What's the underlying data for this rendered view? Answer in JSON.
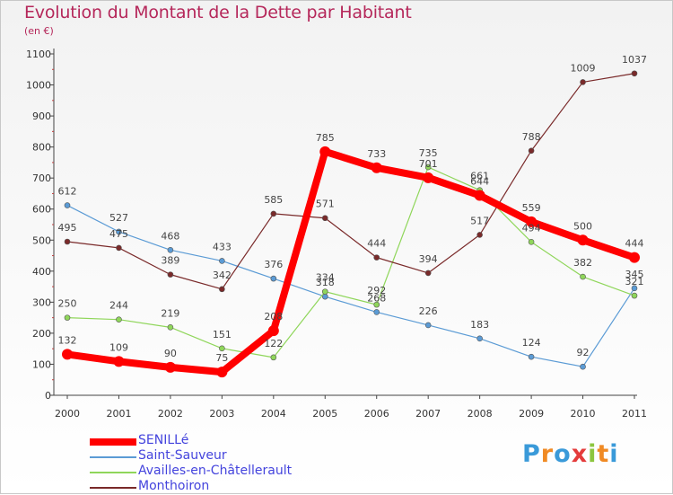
{
  "chart_data": {
    "type": "line",
    "title": "Evolution du Montant de la Dette par Habitant",
    "subtitle": "(en €)",
    "x": [
      "2000",
      "2001",
      "2002",
      "2003",
      "2004",
      "2005",
      "2006",
      "2007",
      "2008",
      "2009",
      "2010",
      "2011"
    ],
    "yticks": [
      0,
      100,
      200,
      300,
      400,
      500,
      600,
      700,
      800,
      900,
      1000,
      1100
    ],
    "ylim": [
      0,
      1100
    ],
    "grid": false,
    "legend_position": "bottom-left",
    "series": [
      {
        "name": "Saint-Sauveur",
        "color": "#5b9bd5",
        "values": [
          612,
          527,
          468,
          433,
          376,
          318,
          268,
          226,
          183,
          124,
          92,
          345
        ]
      },
      {
        "name": "Availles-en-Châtellerault",
        "color": "#8fd65a",
        "values": [
          250,
          244,
          219,
          151,
          122,
          334,
          292,
          735,
          661,
          494,
          382,
          321
        ]
      },
      {
        "name": "Monthoiron",
        "color": "#7a2a2a",
        "values": [
          495,
          475,
          389,
          342,
          585,
          571,
          444,
          394,
          517,
          788,
          1009,
          1037
        ]
      },
      {
        "name": "SENILLé",
        "color": "#ff0000",
        "values": [
          132,
          109,
          90,
          75,
          208,
          785,
          733,
          701,
          644,
          559,
          500,
          444
        ]
      }
    ],
    "legend_order": [
      "SENILLé",
      "Saint-Sauveur",
      "Availles-en-Châtellerault",
      "Monthoiron"
    ]
  },
  "brand": {
    "letters": [
      "P",
      "r",
      "o",
      "x",
      "i",
      "t",
      "i"
    ],
    "colors": [
      "#3a9ad9",
      "#f08a24",
      "#3a9ad9",
      "#e43b3b",
      "#8cc63f",
      "#f08a24",
      "#3a9ad9"
    ]
  }
}
